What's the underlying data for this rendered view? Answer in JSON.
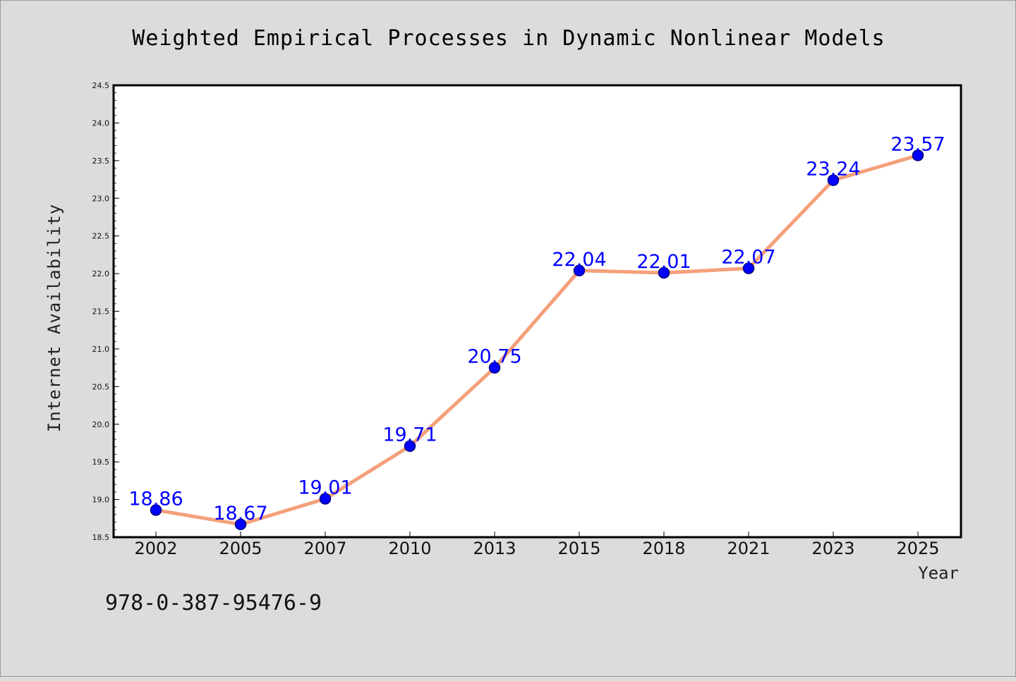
{
  "page": {
    "isbn": "978-0-387-95476-9"
  },
  "colors": {
    "background": "#dcdcdc",
    "plot_area": "#ffffff",
    "line": "#f4a07a",
    "marker_fill": "#0000ff",
    "marker_stroke": "#000080",
    "data_label": "#0000ff"
  },
  "chart_data": {
    "type": "line",
    "title": "Weighted Empirical Processes in Dynamic Nonlinear Models",
    "xlabel": "Year",
    "ylabel": "Internet Availability",
    "categories": [
      "2002",
      "2005",
      "2007",
      "2010",
      "2013",
      "2015",
      "2018",
      "2021",
      "2023",
      "2025"
    ],
    "series": [
      {
        "values": [
          18.86,
          18.67,
          19.01,
          19.71,
          20.75,
          22.04,
          22.01,
          22.07,
          23.24,
          23.57
        ]
      }
    ],
    "data_labels": [
      "18.86",
      "18.67",
      "19.01",
      "19.71",
      "20.75",
      "22.04",
      "22.01",
      "22.07",
      "23.24",
      "23.57"
    ],
    "ylim": [
      18.5,
      24.5
    ],
    "yticks": [
      "18.5",
      "19.0",
      "19.5",
      "20.0",
      "20.5",
      "21.0",
      "21.5",
      "22.0",
      "22.5",
      "23.0",
      "23.5",
      "24.0",
      "24.5"
    ],
    "grid": false,
    "legend": "none"
  }
}
